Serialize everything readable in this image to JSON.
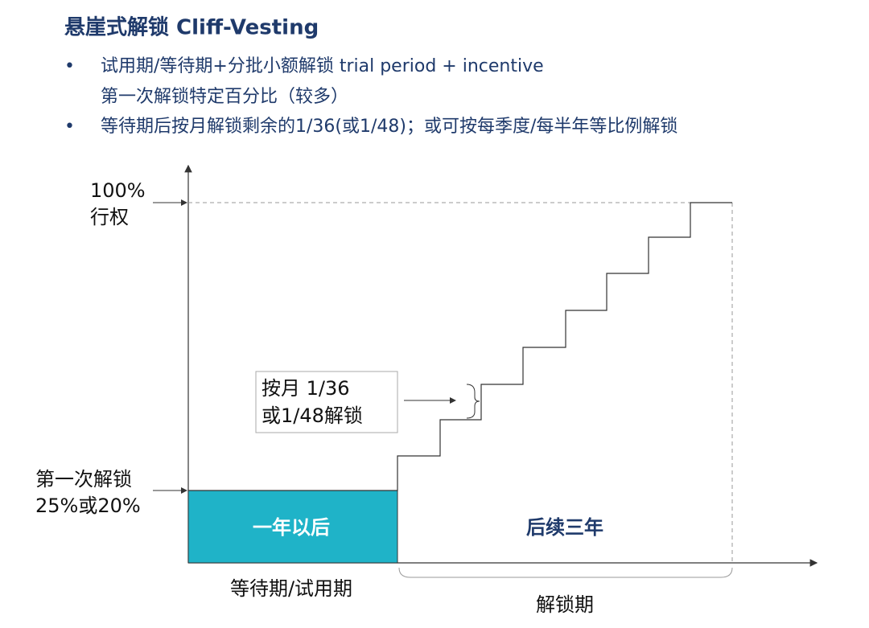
{
  "title": "悬崖式解锁 Cliff-Vesting",
  "bullets": [
    {
      "lines": [
        "试用期/等待期+分批小额解锁 trial period + incentive",
        "第一次解锁特定百分比（较多）"
      ]
    },
    {
      "lines": [
        "等待期后按月解锁剩余的1/36(或1/48)；或可按每季度/每半年等比例解锁"
      ]
    }
  ],
  "chart": {
    "top_label": [
      "100%",
      "行权"
    ],
    "cliff_label": [
      "第一次解锁",
      "25%或20%"
    ],
    "box_left": "一年以后",
    "box_right": "后续三年",
    "callout": [
      "按月 1/36",
      "或1/48解锁"
    ],
    "x_left": "等待期/试用期",
    "x_right": "解锁期"
  }
}
